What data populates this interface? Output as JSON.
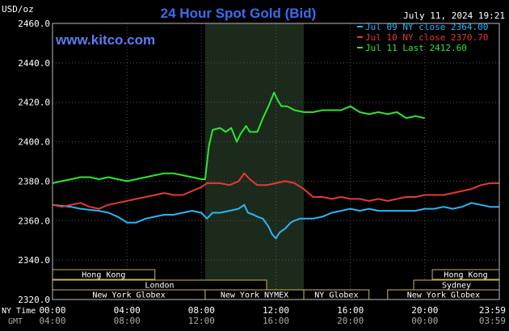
{
  "chart_data": {
    "type": "line",
    "title": "24 Hour Spot Gold (Bid)",
    "y_unit_label": "USD/oz",
    "timestamp": "July 11, 2024 19:21",
    "watermark": "www.kitco.com",
    "ylim": [
      2320,
      2460
    ],
    "y_ticks": [
      "2460.0",
      "2440.0",
      "2420.0",
      "2400.0",
      "2380.0",
      "2360.0",
      "2340.0",
      "2320.0"
    ],
    "x_ticks": [
      {
        "h": 0,
        "ny": "00:00",
        "gmt": "04:00"
      },
      {
        "h": 4,
        "ny": "04:00",
        "gmt": "08:00"
      },
      {
        "h": 8,
        "ny": "08:00",
        "gmt": "12:00"
      },
      {
        "h": 12,
        "ny": "12:00",
        "gmt": "16:00"
      },
      {
        "h": 16,
        "ny": "16:00",
        "gmt": "20:00"
      },
      {
        "h": 20,
        "ny": "20:00",
        "gmt": "00:00"
      },
      {
        "h": 24,
        "ny": "23:59",
        "gmt": "03:59"
      }
    ],
    "x_axis_labels": {
      "ny": "NY Time",
      "gmt": "GMT"
    },
    "highlight_hours": [
      8.2,
      13.5
    ],
    "series": [
      {
        "name": "Jul 09 NY close 2364.00",
        "color": "#29b6f6",
        "points": [
          [
            0,
            2368
          ],
          [
            0.5,
            2367.5
          ],
          [
            1,
            2367
          ],
          [
            1.5,
            2366
          ],
          [
            2,
            2365.5
          ],
          [
            2.5,
            2365
          ],
          [
            3,
            2364
          ],
          [
            3.5,
            2362
          ],
          [
            4,
            2359
          ],
          [
            4.5,
            2359
          ],
          [
            5,
            2361
          ],
          [
            5.5,
            2362
          ],
          [
            6,
            2363
          ],
          [
            6.5,
            2363
          ],
          [
            7,
            2364
          ],
          [
            7.5,
            2365
          ],
          [
            8,
            2364
          ],
          [
            8.3,
            2361
          ],
          [
            8.6,
            2364
          ],
          [
            9,
            2364
          ],
          [
            9.5,
            2365
          ],
          [
            10,
            2366
          ],
          [
            10.3,
            2368
          ],
          [
            10.5,
            2364
          ],
          [
            10.8,
            2363
          ],
          [
            11,
            2362
          ],
          [
            11.3,
            2361
          ],
          [
            11.6,
            2357
          ],
          [
            11.8,
            2353
          ],
          [
            12,
            2351
          ],
          [
            12.2,
            2354
          ],
          [
            12.5,
            2356
          ],
          [
            12.8,
            2359
          ],
          [
            13,
            2360
          ],
          [
            13.3,
            2361
          ],
          [
            13.6,
            2361
          ],
          [
            14,
            2361
          ],
          [
            14.5,
            2362
          ],
          [
            15,
            2364
          ],
          [
            15.5,
            2365
          ],
          [
            16,
            2366
          ],
          [
            16.5,
            2365
          ],
          [
            17,
            2366
          ],
          [
            17.5,
            2365
          ],
          [
            18,
            2365
          ],
          [
            18.5,
            2365
          ],
          [
            19,
            2365
          ],
          [
            19.5,
            2365
          ],
          [
            20,
            2366
          ],
          [
            20.5,
            2366
          ],
          [
            21,
            2367
          ],
          [
            21.5,
            2366
          ],
          [
            22,
            2367
          ],
          [
            22.5,
            2369
          ],
          [
            23,
            2368
          ],
          [
            23.5,
            2367
          ],
          [
            24,
            2367
          ]
        ]
      },
      {
        "name": "Jul 10 NY close 2370.70",
        "color": "#e53935",
        "points": [
          [
            0,
            2368
          ],
          [
            0.5,
            2367
          ],
          [
            1,
            2368
          ],
          [
            1.5,
            2369
          ],
          [
            2,
            2367
          ],
          [
            2.5,
            2366
          ],
          [
            3,
            2368
          ],
          [
            3.5,
            2369
          ],
          [
            4,
            2370
          ],
          [
            4.5,
            2371
          ],
          [
            5,
            2372
          ],
          [
            5.5,
            2373
          ],
          [
            6,
            2374
          ],
          [
            6.5,
            2373
          ],
          [
            7,
            2373
          ],
          [
            7.5,
            2375
          ],
          [
            8,
            2377
          ],
          [
            8.3,
            2379
          ],
          [
            8.6,
            2379
          ],
          [
            9,
            2379
          ],
          [
            9.5,
            2378
          ],
          [
            10,
            2380
          ],
          [
            10.3,
            2384
          ],
          [
            10.6,
            2381
          ],
          [
            11,
            2378
          ],
          [
            11.5,
            2378
          ],
          [
            12,
            2379
          ],
          [
            12.5,
            2380
          ],
          [
            13,
            2379
          ],
          [
            13.5,
            2376
          ],
          [
            14,
            2372
          ],
          [
            14.5,
            2372
          ],
          [
            15,
            2371
          ],
          [
            15.5,
            2372
          ],
          [
            16,
            2371
          ],
          [
            16.5,
            2371
          ],
          [
            17,
            2370
          ],
          [
            17.5,
            2371
          ],
          [
            18,
            2370
          ],
          [
            18.5,
            2371
          ],
          [
            19,
            2372
          ],
          [
            19.5,
            2372
          ],
          [
            20,
            2373
          ],
          [
            20.5,
            2373
          ],
          [
            21,
            2373
          ],
          [
            21.5,
            2374
          ],
          [
            22,
            2375
          ],
          [
            22.5,
            2376
          ],
          [
            23,
            2378
          ],
          [
            23.5,
            2379
          ],
          [
            24,
            2379
          ]
        ]
      },
      {
        "name": "Jul 11 Last 2412.60",
        "color": "#2ee62e",
        "points": [
          [
            0,
            2379
          ],
          [
            0.5,
            2380
          ],
          [
            1,
            2381
          ],
          [
            1.5,
            2382
          ],
          [
            2,
            2382
          ],
          [
            2.5,
            2381
          ],
          [
            3,
            2382
          ],
          [
            3.5,
            2381
          ],
          [
            4,
            2380
          ],
          [
            4.5,
            2381
          ],
          [
            5,
            2382
          ],
          [
            5.5,
            2383
          ],
          [
            6,
            2384
          ],
          [
            6.5,
            2384
          ],
          [
            7,
            2383
          ],
          [
            7.5,
            2382
          ],
          [
            8,
            2381
          ],
          [
            8.2,
            2381
          ],
          [
            8.4,
            2398
          ],
          [
            8.6,
            2406
          ],
          [
            9,
            2407
          ],
          [
            9.3,
            2405
          ],
          [
            9.6,
            2407
          ],
          [
            9.9,
            2400
          ],
          [
            10.1,
            2404
          ],
          [
            10.4,
            2408
          ],
          [
            10.6,
            2405
          ],
          [
            11,
            2405
          ],
          [
            11.3,
            2412
          ],
          [
            11.6,
            2418
          ],
          [
            11.9,
            2425
          ],
          [
            12.1,
            2421
          ],
          [
            12.3,
            2418
          ],
          [
            12.6,
            2418
          ],
          [
            13,
            2416
          ],
          [
            13.5,
            2415
          ],
          [
            14,
            2415
          ],
          [
            14.5,
            2416
          ],
          [
            15,
            2416
          ],
          [
            15.5,
            2416
          ],
          [
            16,
            2418
          ],
          [
            16.5,
            2415
          ],
          [
            17,
            2414
          ],
          [
            17.5,
            2415
          ],
          [
            18,
            2414
          ],
          [
            18.5,
            2415
          ],
          [
            19,
            2412
          ],
          [
            19.5,
            2413
          ],
          [
            20,
            2412
          ]
        ]
      }
    ],
    "session_bars": [
      {
        "label": "Hong Kong",
        "row": 0,
        "spans": [
          [
            0,
            5.5
          ],
          [
            20.4,
            24
          ]
        ]
      },
      {
        "label": "London",
        "row": 1,
        "spans": [
          [
            0,
            11.5
          ]
        ]
      },
      {
        "label": "New York Globex",
        "row": 2,
        "spans": [
          [
            0,
            8.2
          ],
          [
            18,
            24
          ]
        ]
      },
      {
        "label": "New York NYMEX",
        "row": 2,
        "spans": [
          [
            8.2,
            13.5
          ]
        ]
      },
      {
        "label": "NY Globex",
        "row": 2,
        "spans": [
          [
            13.5,
            17
          ]
        ]
      },
      {
        "label": "Sydney",
        "row": 1,
        "spans": [
          [
            19.4,
            24
          ]
        ]
      }
    ]
  }
}
